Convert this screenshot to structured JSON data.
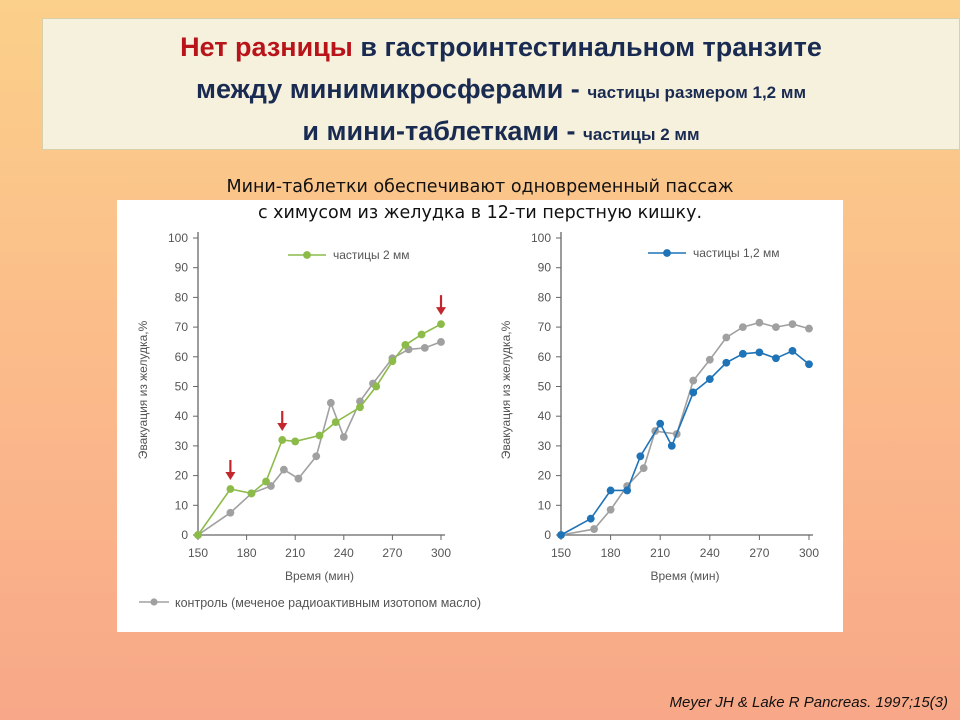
{
  "title": {
    "line1": {
      "red": "Нет разницы",
      "rest": " в гастроинтестинальном транзите"
    },
    "line2": {
      "big": "между минимикросферами - ",
      "small": "частицы размером 1,2 мм"
    },
    "line3": {
      "big": "и мини-таблетками - ",
      "small": "частицы 2 мм"
    }
  },
  "subtitle": {
    "line1": "Мини-таблетки обеспечивают одновременный пассаж",
    "line2": "с химусом из желудка в 12-ти перстную кишку."
  },
  "citation": "Meyer JH & Lake R Pancreas. 1997;15(3)",
  "shared_legend": "контроль (меченое радиоактивным изотопом масло)",
  "colors": {
    "green": "#8cbb4a",
    "gray": "#a0a0a0",
    "blue": "#1f73b7",
    "arrow": "#c1272d",
    "axis": "#666666"
  },
  "chart_data": [
    {
      "type": "line",
      "xlabel": "Время (мин)",
      "ylabel": "Эвакуация из желудка,%",
      "xlim": [
        150,
        300
      ],
      "ylim": [
        0,
        100
      ],
      "xticks": [
        150,
        180,
        210,
        240,
        270,
        300
      ],
      "yticks": [
        0,
        10,
        20,
        30,
        40,
        50,
        60,
        70,
        80,
        90,
        100
      ],
      "grid": false,
      "legend": "top-center",
      "series": [
        {
          "name": "частицы 2 мм",
          "color": "#8cbb4a",
          "x": [
            150,
            170,
            183,
            192,
            202,
            210,
            225,
            235,
            250,
            260,
            270,
            278,
            288,
            300
          ],
          "y": [
            0,
            15.5,
            14,
            18,
            32,
            31.5,
            33.5,
            38,
            43,
            50,
            58.5,
            64,
            67.5,
            71
          ]
        },
        {
          "name": "",
          "color": "#a0a0a0",
          "x": [
            150,
            170,
            183,
            195,
            203,
            212,
            223,
            232,
            240,
            250,
            258,
            270,
            280,
            290,
            300
          ],
          "y": [
            0,
            7.5,
            14,
            16.5,
            22,
            19,
            26.5,
            44.5,
            33,
            45,
            51,
            59.5,
            62.5,
            63,
            65
          ]
        }
      ],
      "annotations": [
        {
          "type": "down-arrow",
          "x": 170,
          "y": 15.5
        },
        {
          "type": "down-arrow",
          "x": 202,
          "y": 32
        },
        {
          "type": "down-arrow",
          "x": 300,
          "y": 71
        }
      ]
    },
    {
      "type": "line",
      "xlabel": "Время (мин)",
      "ylabel": "Эвакуация из желудка,%",
      "xlim": [
        150,
        300
      ],
      "ylim": [
        0,
        100
      ],
      "xticks": [
        150,
        180,
        210,
        240,
        270,
        300
      ],
      "yticks": [
        0,
        10,
        20,
        30,
        40,
        50,
        60,
        70,
        80,
        90,
        100
      ],
      "grid": false,
      "legend": "top-center",
      "series": [
        {
          "name": "частицы 1,2 мм",
          "color": "#1f73b7",
          "x": [
            150,
            168,
            180,
            190,
            198,
            210,
            217,
            230,
            240,
            250,
            260,
            270,
            280,
            290,
            300
          ],
          "y": [
            0,
            5.5,
            15,
            15,
            26.5,
            37.5,
            30,
            48,
            52.5,
            58,
            61,
            61.5,
            59.5,
            62,
            57.5
          ]
        },
        {
          "name": "",
          "color": "#a0a0a0",
          "x": [
            150,
            170,
            180,
            190,
            200,
            207,
            220,
            230,
            240,
            250,
            260,
            270,
            280,
            290,
            300
          ],
          "y": [
            0,
            2,
            8.5,
            16.5,
            22.5,
            35,
            34,
            52,
            59,
            66.5,
            70,
            71.5,
            70,
            71,
            69.5
          ]
        }
      ]
    }
  ]
}
